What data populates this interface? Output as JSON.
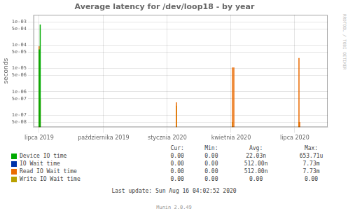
{
  "chart_data": {
    "type": "bar",
    "title": "Average latency for /dev/loop18 - by year",
    "y_label": "seconds",
    "log": "y",
    "grid": true,
    "xlim": [
      1561334400,
      1597622400
    ],
    "xticks": [
      {
        "value": 1562025600,
        "label": "lipca 2019"
      },
      {
        "value": 1569974400,
        "label": "października 2019"
      },
      {
        "value": 1577836800,
        "label": "stycznia 2020"
      },
      {
        "value": 1585699200,
        "label": "kwietnia 2020"
      },
      {
        "value": 1593561600,
        "label": "lipca 2020"
      }
    ],
    "ylim": [
      3e-08,
      0.002
    ],
    "yticks": [
      {
        "value": 5e-08,
        "label": "5e-08"
      },
      {
        "value": 1e-07,
        "label": "1e-07"
      },
      {
        "value": 5e-07,
        "label": "5e-07"
      },
      {
        "value": 1e-06,
        "label": "1e-06"
      },
      {
        "value": 5e-06,
        "label": "5e-06"
      },
      {
        "value": 1e-05,
        "label": "1e-05"
      },
      {
        "value": 5e-05,
        "label": "5e-05"
      },
      {
        "value": 0.0001,
        "label": "1e-04"
      },
      {
        "value": 0.0005,
        "label": "5e-04"
      },
      {
        "value": 0.001,
        "label": "1e-03"
      }
    ],
    "stats_headers": [
      "Cur:",
      "Min:",
      "Avg:",
      "Max:"
    ],
    "series": [
      {
        "name": "Device IO time",
        "color": "#00aa00",
        "x": [
          1562025600,
          1562160000
        ],
        "values": [
          6.5e-05,
          0.000773
        ],
        "stats": [
          "0.00",
          "0.00",
          "22.03n",
          "653.71u"
        ]
      },
      {
        "name": "IO Wait time",
        "color": "#0033aa",
        "x": [],
        "values": [],
        "stats": [
          "0.00",
          "0.00",
          "512.00n",
          "7.73m"
        ]
      },
      {
        "name": "Read IO Wait time",
        "color": "#ea6b02",
        "x": [
          1562025600,
          1562160000,
          1578960000,
          1585872000,
          1586044800,
          1594080000,
          1594166400
        ],
        "values": [
          9e-05,
          5e-07,
          3.5e-07,
          1.1e-05,
          1.1e-05,
          2.8e-05,
          5e-08
        ],
        "stats": [
          "0.00",
          "0.00",
          "512.00n",
          "7.73m"
        ]
      },
      {
        "name": "Write IO Wait time",
        "color": "#b8a000",
        "x": [
          1562025600,
          1578960000,
          1585872000,
          1594080000
        ],
        "values": [
          5e-07,
          2.5e-07,
          5e-08,
          5e-08
        ],
        "stats": [
          "0.00",
          "0.00",
          "0.00",
          "0.00"
        ]
      }
    ],
    "annotations": [
      "Last update: Sun Aug 16 04:02:52 2020",
      "Munin 2.0.49",
      "RRDTOOL / TOBI OETIKER"
    ]
  }
}
